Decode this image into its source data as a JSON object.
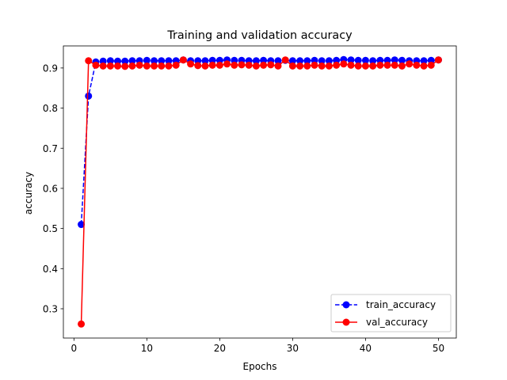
{
  "chart_data": {
    "type": "line",
    "title": "Training and validation accuracy",
    "xlabel": "Epochs",
    "ylabel": "accuracy",
    "xlim": [
      -1.45,
      52.45
    ],
    "ylim": [
      0.227,
      0.955
    ],
    "xticks": [
      0,
      10,
      20,
      30,
      40,
      50
    ],
    "yticks": [
      0.3,
      0.4,
      0.5,
      0.6,
      0.7,
      0.8,
      0.9
    ],
    "xtick_labels": [
      "0",
      "10",
      "20",
      "30",
      "40",
      "50"
    ],
    "ytick_labels": [
      "0.3",
      "0.4",
      "0.5",
      "0.6",
      "0.7",
      "0.8",
      "0.9"
    ],
    "grid": false,
    "legend_position": "lower-right",
    "x": [
      1,
      2,
      3,
      4,
      5,
      6,
      7,
      8,
      9,
      10,
      11,
      12,
      13,
      14,
      15,
      16,
      17,
      18,
      19,
      20,
      21,
      22,
      23,
      24,
      25,
      26,
      27,
      28,
      29,
      30,
      31,
      32,
      33,
      34,
      35,
      36,
      37,
      38,
      39,
      40,
      41,
      42,
      43,
      44,
      45,
      46,
      47,
      48,
      49,
      50
    ],
    "series": [
      {
        "name": "train_accuracy",
        "color": "#0000ff",
        "line_style": "dashed",
        "marker": "circle",
        "values": [
          0.51,
          0.83,
          0.915,
          0.917,
          0.918,
          0.917,
          0.917,
          0.918,
          0.918,
          0.919,
          0.918,
          0.918,
          0.918,
          0.918,
          0.92,
          0.918,
          0.918,
          0.918,
          0.919,
          0.919,
          0.92,
          0.919,
          0.919,
          0.918,
          0.918,
          0.919,
          0.918,
          0.918,
          0.919,
          0.918,
          0.918,
          0.918,
          0.919,
          0.918,
          0.918,
          0.919,
          0.921,
          0.92,
          0.919,
          0.919,
          0.918,
          0.919,
          0.919,
          0.92,
          0.919,
          0.918,
          0.918,
          0.918,
          0.919,
          0.92
        ]
      },
      {
        "name": "val_accuracy",
        "color": "#ff0000",
        "line_style": "solid",
        "marker": "circle",
        "values": [
          0.262,
          0.918,
          0.907,
          0.905,
          0.905,
          0.905,
          0.904,
          0.905,
          0.907,
          0.905,
          0.905,
          0.905,
          0.905,
          0.907,
          0.92,
          0.91,
          0.906,
          0.905,
          0.907,
          0.907,
          0.91,
          0.907,
          0.908,
          0.907,
          0.905,
          0.907,
          0.908,
          0.905,
          0.92,
          0.905,
          0.905,
          0.905,
          0.907,
          0.905,
          0.905,
          0.907,
          0.91,
          0.907,
          0.905,
          0.905,
          0.905,
          0.907,
          0.907,
          0.907,
          0.905,
          0.91,
          0.907,
          0.905,
          0.907,
          0.92
        ]
      }
    ]
  }
}
